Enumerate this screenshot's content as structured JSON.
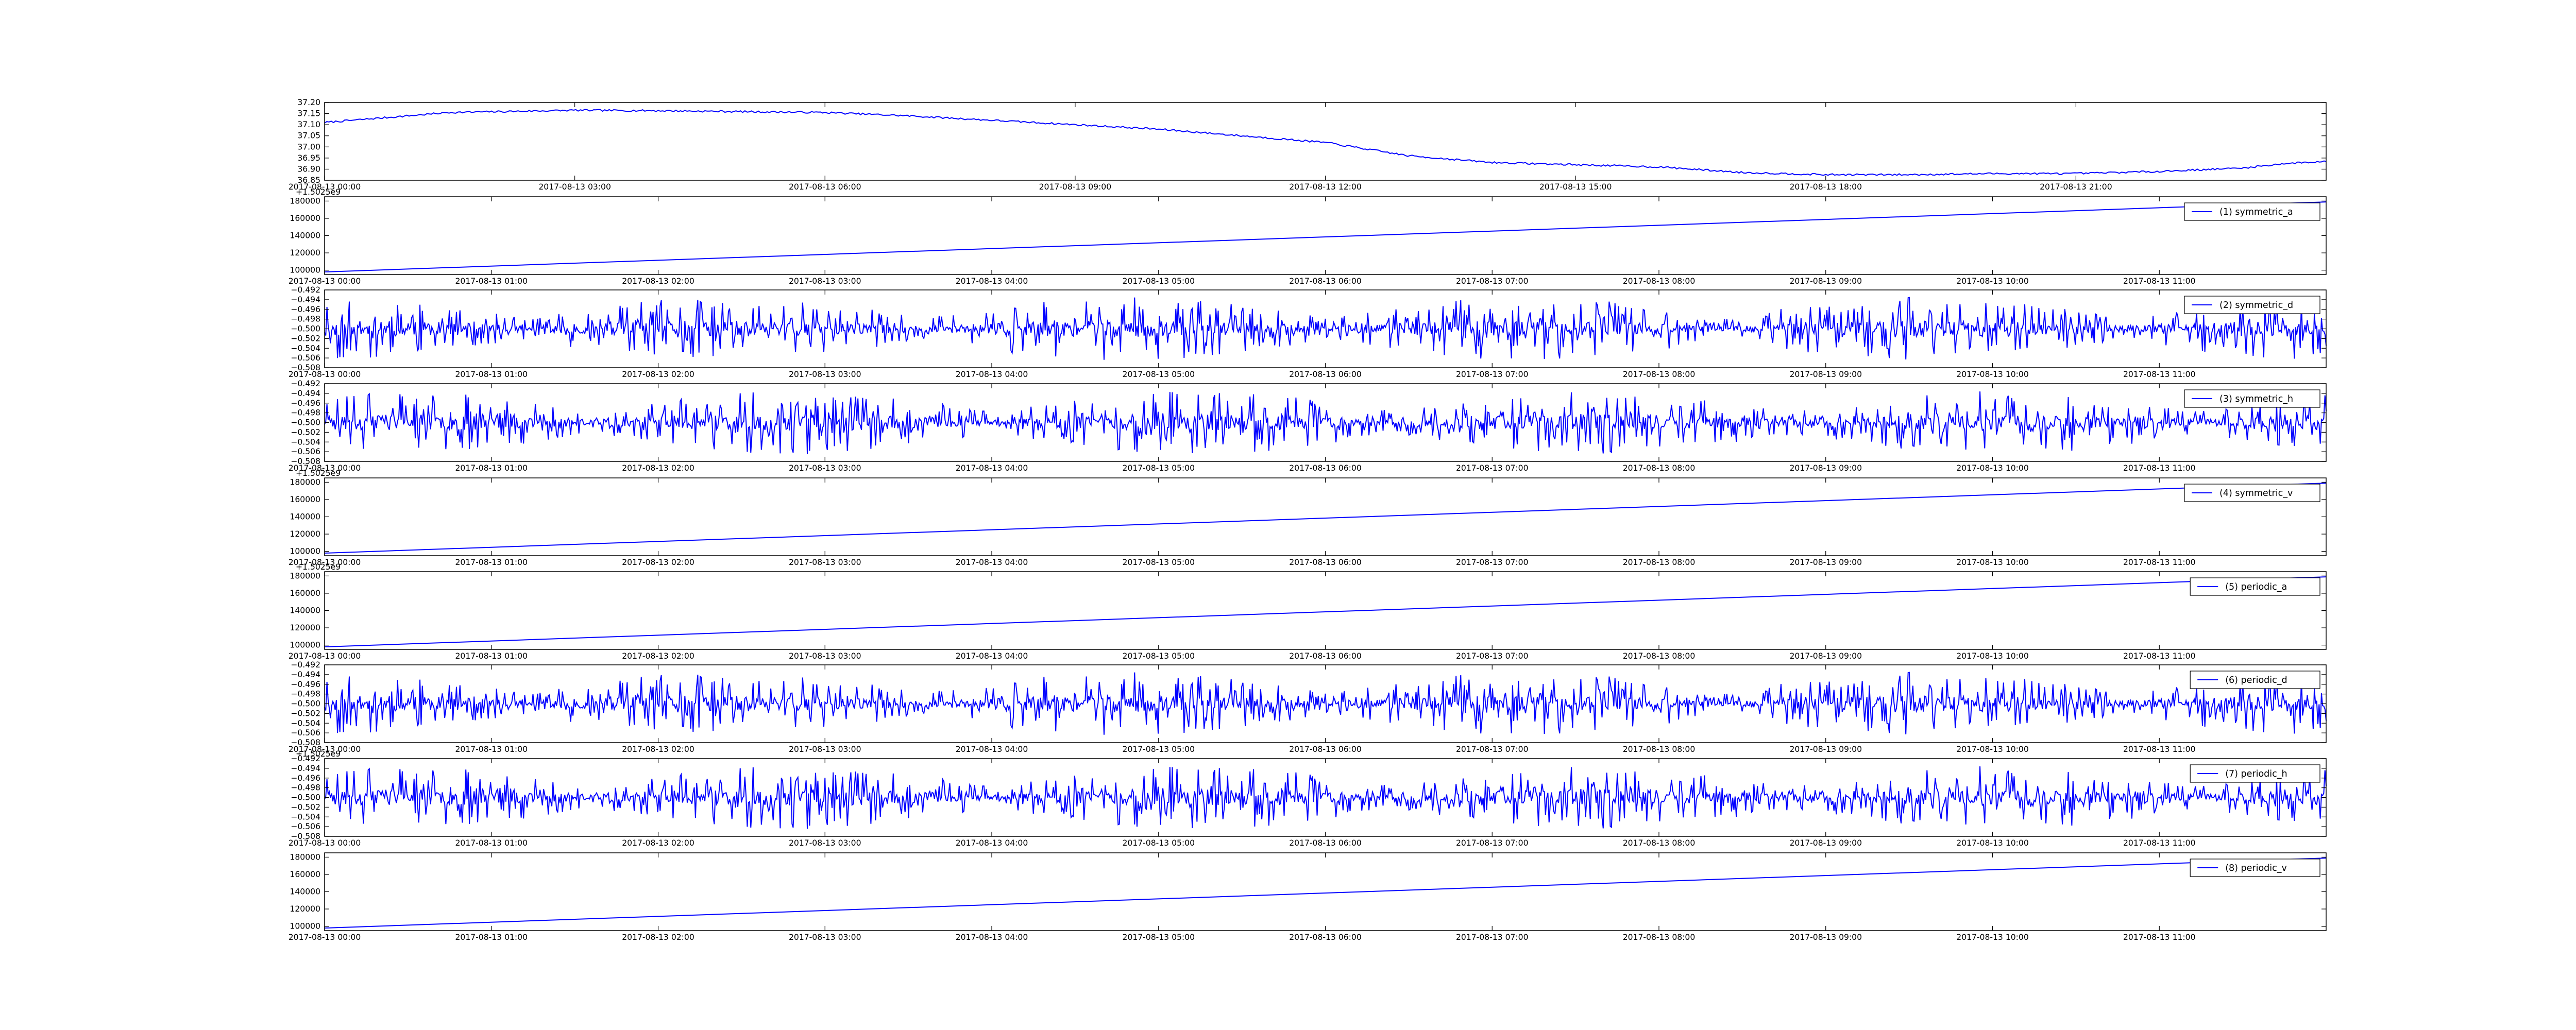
{
  "figure": {
    "background": "#ffffff",
    "line_color": "#0000ff",
    "axis_color": "#000000"
  },
  "chart_data": [
    {
      "id": "top",
      "type": "line",
      "legend": null,
      "offset_text": "",
      "x_start": "2017-08-13 00:00",
      "x_end": "2017-08-14 00:00",
      "ylim": [
        36.85,
        37.2
      ],
      "yticks": [
        "36.85",
        "36.90",
        "36.95",
        "37.00",
        "37.05",
        "37.10",
        "37.15",
        "37.20"
      ],
      "xticks": [
        "2017-08-13 00:00",
        "2017-08-13 03:00",
        "2017-08-13 06:00",
        "2017-08-13 09:00",
        "2017-08-13 12:00",
        "2017-08-13 15:00",
        "2017-08-13 18:00",
        "2017-08-13 21:00"
      ],
      "trend": {
        "x_hours": [
          0,
          0.5,
          1.5,
          3,
          4,
          6,
          7,
          8,
          9,
          10,
          11,
          12,
          12.5,
          13,
          14,
          15,
          16,
          17,
          18,
          19,
          20,
          21,
          22,
          23,
          23.5,
          24
        ],
        "y": [
          37.11,
          37.125,
          37.155,
          37.165,
          37.163,
          37.155,
          37.14,
          37.12,
          37.1,
          37.08,
          37.05,
          37.02,
          36.99,
          36.96,
          36.93,
          36.92,
          36.91,
          36.885,
          36.875,
          36.875,
          36.88,
          36.88,
          36.89,
          36.905,
          36.925,
          36.935
        ],
        "noise_amplitude": 0.004
      }
    },
    {
      "id": "symmetric_a",
      "type": "line",
      "legend": "(1) symmetric_a",
      "offset_text": "+1.5025e9",
      "x_start": "2017-08-13 00:00",
      "x_end": "2017-08-13 12:00",
      "ylim": [
        95000,
        185000
      ],
      "yticks": [
        "100000",
        "120000",
        "140000",
        "160000",
        "180000"
      ],
      "xticks": [
        "2017-08-13 00:00",
        "2017-08-13 01:00",
        "2017-08-13 02:00",
        "2017-08-13 03:00",
        "2017-08-13 04:00",
        "2017-08-13 05:00",
        "2017-08-13 06:00",
        "2017-08-13 07:00",
        "2017-08-13 08:00",
        "2017-08-13 09:00",
        "2017-08-13 10:00",
        "2017-08-13 11:00"
      ],
      "linear": [
        98000,
        179000
      ]
    },
    {
      "id": "symmetric_d",
      "type": "line",
      "legend": "(2) symmetric_d",
      "offset_text": "",
      "x_start": "2017-08-13 00:00",
      "x_end": "2017-08-13 12:00",
      "ylim": [
        -0.508,
        -0.492
      ],
      "yticks": [
        "−0.508",
        "−0.506",
        "−0.504",
        "−0.502",
        "−0.500",
        "−0.498",
        "−0.496",
        "−0.494",
        "−0.492"
      ],
      "xticks": [
        "2017-08-13 00:00",
        "2017-08-13 01:00",
        "2017-08-13 02:00",
        "2017-08-13 03:00",
        "2017-08-13 04:00",
        "2017-08-13 05:00",
        "2017-08-13 06:00",
        "2017-08-13 07:00",
        "2017-08-13 08:00",
        "2017-08-13 09:00",
        "2017-08-13 10:00",
        "2017-08-13 11:00"
      ],
      "oscillation": {
        "center": -0.5,
        "amplitude": 0.0065,
        "seed": 11
      }
    },
    {
      "id": "symmetric_h",
      "type": "line",
      "legend": "(3) symmetric_h",
      "offset_text": "",
      "x_start": "2017-08-13 00:00",
      "x_end": "2017-08-13 12:00",
      "ylim": [
        -0.508,
        -0.492
      ],
      "yticks": [
        "−0.508",
        "−0.506",
        "−0.504",
        "−0.502",
        "−0.500",
        "−0.498",
        "−0.496",
        "−0.494",
        "−0.492"
      ],
      "xticks": [
        "2017-08-13 00:00",
        "2017-08-13 01:00",
        "2017-08-13 02:00",
        "2017-08-13 03:00",
        "2017-08-13 04:00",
        "2017-08-13 05:00",
        "2017-08-13 06:00",
        "2017-08-13 07:00",
        "2017-08-13 08:00",
        "2017-08-13 09:00",
        "2017-08-13 10:00",
        "2017-08-13 11:00"
      ],
      "oscillation": {
        "center": -0.5,
        "amplitude": 0.0065,
        "seed": 23
      }
    },
    {
      "id": "symmetric_v",
      "type": "line",
      "legend": "(4) symmetric_v",
      "offset_text": "+1.5025e9",
      "x_start": "2017-08-13 00:00",
      "x_end": "2017-08-13 12:00",
      "ylim": [
        95000,
        185000
      ],
      "yticks": [
        "100000",
        "120000",
        "140000",
        "160000",
        "180000"
      ],
      "xticks": [
        "2017-08-13 00:00",
        "2017-08-13 01:00",
        "2017-08-13 02:00",
        "2017-08-13 03:00",
        "2017-08-13 04:00",
        "2017-08-13 05:00",
        "2017-08-13 06:00",
        "2017-08-13 07:00",
        "2017-08-13 08:00",
        "2017-08-13 09:00",
        "2017-08-13 10:00",
        "2017-08-13 11:00"
      ],
      "linear": [
        98000,
        179000
      ]
    },
    {
      "id": "periodic_a",
      "type": "line",
      "legend": "(5) periodic_a",
      "offset_text": "+1.5025e9",
      "x_start": "2017-08-13 00:00",
      "x_end": "2017-08-13 12:00",
      "ylim": [
        95000,
        185000
      ],
      "yticks": [
        "100000",
        "120000",
        "140000",
        "160000",
        "180000"
      ],
      "xticks": [
        "2017-08-13 00:00",
        "2017-08-13 01:00",
        "2017-08-13 02:00",
        "2017-08-13 03:00",
        "2017-08-13 04:00",
        "2017-08-13 05:00",
        "2017-08-13 06:00",
        "2017-08-13 07:00",
        "2017-08-13 08:00",
        "2017-08-13 09:00",
        "2017-08-13 10:00",
        "2017-08-13 11:00"
      ],
      "linear": [
        98000,
        179000
      ]
    },
    {
      "id": "periodic_d",
      "type": "line",
      "legend": "(6) periodic_d",
      "offset_text": "",
      "x_start": "2017-08-13 00:00",
      "x_end": "2017-08-13 12:00",
      "ylim": [
        -0.508,
        -0.492
      ],
      "yticks": [
        "−0.508",
        "−0.506",
        "−0.504",
        "−0.502",
        "−0.500",
        "−0.498",
        "−0.496",
        "−0.494",
        "−0.492"
      ],
      "xticks": [
        "2017-08-13 00:00",
        "2017-08-13 01:00",
        "2017-08-13 02:00",
        "2017-08-13 03:00",
        "2017-08-13 04:00",
        "2017-08-13 05:00",
        "2017-08-13 06:00",
        "2017-08-13 07:00",
        "2017-08-13 08:00",
        "2017-08-13 09:00",
        "2017-08-13 10:00",
        "2017-08-13 11:00"
      ],
      "oscillation": {
        "center": -0.5,
        "amplitude": 0.0065,
        "seed": 11
      }
    },
    {
      "id": "periodic_h",
      "type": "line",
      "legend": "(7) periodic_h",
      "offset_text": "+1.5025e9",
      "x_start": "2017-08-13 00:00",
      "x_end": "2017-08-13 12:00",
      "ylim": [
        -0.508,
        -0.492
      ],
      "yticks": [
        "−0.508",
        "−0.506",
        "−0.504",
        "−0.502",
        "−0.500",
        "−0.498",
        "−0.496",
        "−0.494",
        "−0.492"
      ],
      "xticks": [
        "2017-08-13 00:00",
        "2017-08-13 01:00",
        "2017-08-13 02:00",
        "2017-08-13 03:00",
        "2017-08-13 04:00",
        "2017-08-13 05:00",
        "2017-08-13 06:00",
        "2017-08-13 07:00",
        "2017-08-13 08:00",
        "2017-08-13 09:00",
        "2017-08-13 10:00",
        "2017-08-13 11:00"
      ],
      "oscillation": {
        "center": -0.5,
        "amplitude": 0.0065,
        "seed": 23
      }
    },
    {
      "id": "periodic_v",
      "type": "line",
      "legend": "(8) periodic_v",
      "offset_text": "",
      "x_start": "2017-08-13 00:00",
      "x_end": "2017-08-13 12:00",
      "ylim": [
        95000,
        185000
      ],
      "yticks": [
        "100000",
        "120000",
        "140000",
        "160000",
        "180000"
      ],
      "xticks": [
        "2017-08-13 00:00",
        "2017-08-13 01:00",
        "2017-08-13 02:00",
        "2017-08-13 03:00",
        "2017-08-13 04:00",
        "2017-08-13 05:00",
        "2017-08-13 06:00",
        "2017-08-13 07:00",
        "2017-08-13 08:00",
        "2017-08-13 09:00",
        "2017-08-13 10:00",
        "2017-08-13 11:00"
      ],
      "linear": [
        98000,
        179000
      ]
    }
  ]
}
